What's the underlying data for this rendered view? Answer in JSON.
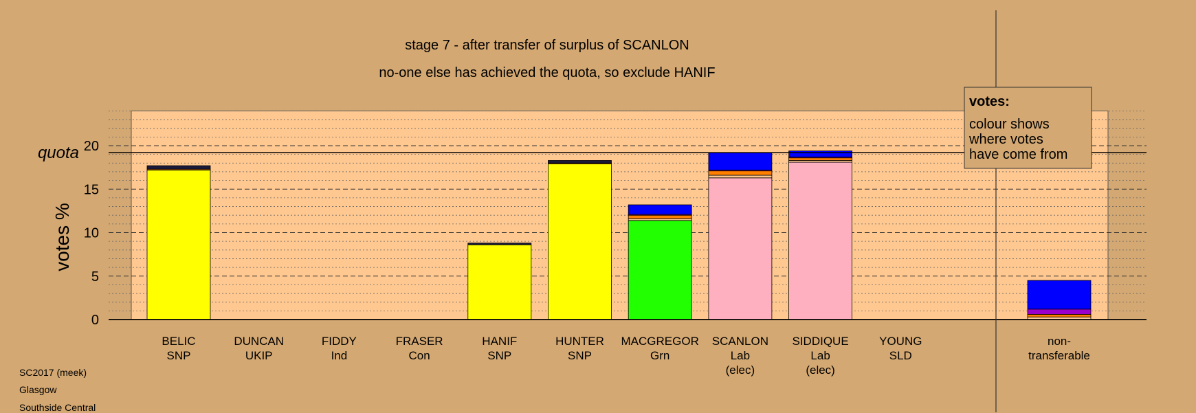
{
  "colors": {
    "background": "#d4a872",
    "plot_area": "#ffc890",
    "snp": "#ffff00",
    "green": "#22ff00",
    "labour": "#ffb0c0",
    "transfer_blue": "#0000ff",
    "transfer_purple": "#9900cc",
    "transfer_orange": "#ff8000",
    "dark": "#1a1a3a"
  },
  "titles": {
    "line1": "stage 7 - after transfer of surplus of SCANLON",
    "line2": "no-one else has achieved the quota, so exclude HANIF"
  },
  "legend": {
    "heading": "votes:",
    "lines": [
      "colour shows",
      "where votes",
      "have come from"
    ]
  },
  "footer": {
    "line1": "SC2017 (meek)",
    "line2": "Glasgow",
    "line3": "Southside Central"
  },
  "chart_data": {
    "type": "bar",
    "stacked": true,
    "ylabel": "votes %",
    "ylim": [
      0,
      24
    ],
    "yticks": [
      0,
      5,
      10,
      15,
      20
    ],
    "quota_label": "quota",
    "quota": 19.2,
    "candidates": [
      {
        "name": "BELIC",
        "party": "SNP",
        "note": "",
        "segments": [
          {
            "value": 17.2,
            "color": "#ffff00"
          },
          {
            "value": 0.1,
            "color": "#ff8000"
          },
          {
            "value": 0.4,
            "color": "#1a1a3a"
          }
        ]
      },
      {
        "name": "DUNCAN",
        "party": "UKIP",
        "note": "",
        "segments": []
      },
      {
        "name": "FIDDY",
        "party": "Ind",
        "note": "",
        "segments": []
      },
      {
        "name": "FRASER",
        "party": "Con",
        "note": "",
        "segments": []
      },
      {
        "name": "HANIF",
        "party": "SNP",
        "note": "",
        "segments": [
          {
            "value": 8.6,
            "color": "#ffff00"
          },
          {
            "value": 0.2,
            "color": "#1a1a3a"
          }
        ]
      },
      {
        "name": "HUNTER",
        "party": "SNP",
        "note": "",
        "segments": [
          {
            "value": 17.9,
            "color": "#ffff00"
          },
          {
            "value": 0.1,
            "color": "#ff8000"
          },
          {
            "value": 0.3,
            "color": "#1a1a3a"
          }
        ]
      },
      {
        "name": "MACGREGOR",
        "party": "Grn",
        "note": "",
        "segments": [
          {
            "value": 11.4,
            "color": "#22ff00"
          },
          {
            "value": 0.2,
            "color": "#ffc890"
          },
          {
            "value": 0.4,
            "color": "#ff8000"
          },
          {
            "value": 0.1,
            "color": "#9900cc"
          },
          {
            "value": 1.1,
            "color": "#0000ff"
          }
        ]
      },
      {
        "name": "SCANLON",
        "party": "Lab",
        "note": "(elec)",
        "segments": [
          {
            "value": 16.3,
            "color": "#ffb0c0"
          },
          {
            "value": 0.3,
            "color": "#ffc890"
          },
          {
            "value": 0.5,
            "color": "#ff8000"
          },
          {
            "value": 0.1,
            "color": "#9900cc"
          },
          {
            "value": 2.0,
            "color": "#0000ff"
          }
        ]
      },
      {
        "name": "SIDDIQUE",
        "party": "Lab",
        "note": "(elec)",
        "segments": [
          {
            "value": 18.1,
            "color": "#ffb0c0"
          },
          {
            "value": 0.2,
            "color": "#ffc890"
          },
          {
            "value": 0.3,
            "color": "#ff8000"
          },
          {
            "value": 0.1,
            "color": "#9900cc"
          },
          {
            "value": 0.7,
            "color": "#0000ff"
          }
        ]
      },
      {
        "name": "YOUNG",
        "party": "SLD",
        "note": "",
        "segments": []
      },
      {
        "name": "non-",
        "party": "transferable",
        "note": "",
        "segments": [
          {
            "value": 0.3,
            "color": "#ffc890"
          },
          {
            "value": 0.3,
            "color": "#ff8000"
          },
          {
            "value": 0.6,
            "color": "#9900cc"
          },
          {
            "value": 3.3,
            "color": "#0000ff"
          }
        ]
      }
    ]
  }
}
